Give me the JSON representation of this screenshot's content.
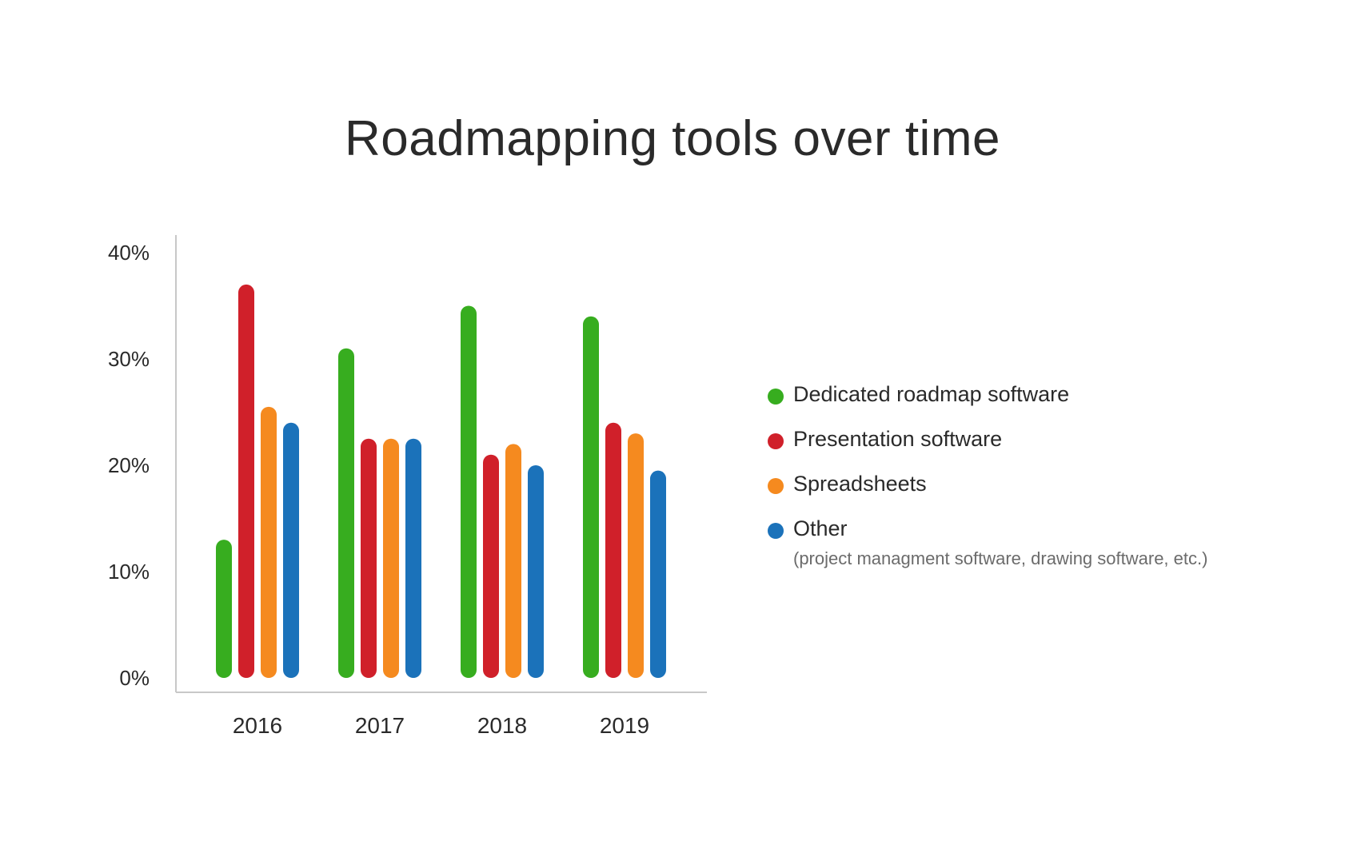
{
  "chart_data": {
    "type": "bar",
    "title": "Roadmapping tools over time",
    "xlabel": "",
    "ylabel": "",
    "categories": [
      "2016",
      "2017",
      "2018",
      "2019"
    ],
    "ylim": [
      0,
      40
    ],
    "yticks": [
      0,
      10,
      20,
      30,
      40
    ],
    "ytick_labels": [
      "0%",
      "10%",
      "20%",
      "30%",
      "40%"
    ],
    "grid": false,
    "legend_position": "right",
    "series": [
      {
        "name": "Dedicated roadmap software",
        "color": "#37ad1f",
        "values": [
          13,
          31,
          35,
          34
        ]
      },
      {
        "name": "Presentation software",
        "color": "#d0202a",
        "values": [
          37,
          22.5,
          21,
          24
        ]
      },
      {
        "name": "Spreadsheets",
        "color": "#f58a1f",
        "values": [
          25.5,
          22.5,
          22,
          23
        ]
      },
      {
        "name": "Other",
        "color": "#1b72ba",
        "values": [
          24,
          22.5,
          20,
          19.5
        ]
      }
    ]
  },
  "legend": {
    "items": [
      {
        "label": "Dedicated roadmap software",
        "color": "#37ad1f",
        "note": ""
      },
      {
        "label": "Presentation software",
        "color": "#d0202a",
        "note": ""
      },
      {
        "label": "Spreadsheets",
        "color": "#f58a1f",
        "note": ""
      },
      {
        "label": "Other",
        "color": "#1b72ba",
        "note": "(project managment software, drawing software, etc.)"
      }
    ]
  }
}
